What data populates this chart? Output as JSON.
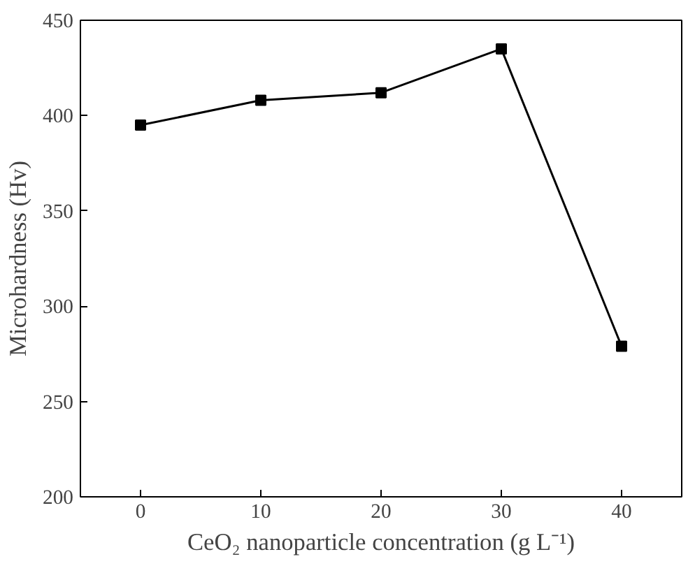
{
  "chart_data": {
    "type": "line",
    "xlabel": "CeO₂ nanoparticle concentration (g L⁻¹)",
    "ylabel": "Microhardness (Hv)",
    "x": [
      0,
      10,
      20,
      30,
      40
    ],
    "series": [
      {
        "color": "#000000",
        "values": [
          395,
          408,
          412,
          435,
          279
        ]
      }
    ],
    "xlim": [
      -5,
      45
    ],
    "xticks": [
      0,
      10,
      20,
      30,
      40
    ],
    "ylim": [
      200,
      450
    ],
    "yticks": [
      200,
      250,
      300,
      350,
      400,
      450
    ],
    "marker": "square",
    "line_style": "solid",
    "grid": false
  }
}
